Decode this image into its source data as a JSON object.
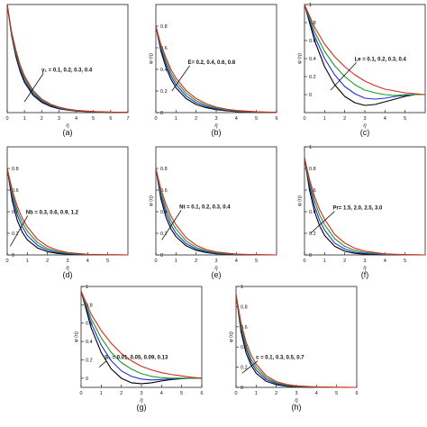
{
  "figure": {
    "background": "#ffffff",
    "series_colors": [
      "#000000",
      "#1f2fd6",
      "#1a9a2a",
      "#d62a1a"
    ]
  },
  "chart_data": [
    {
      "panel": "(a)",
      "type": "line",
      "xlabel": "η",
      "ylabel": "",
      "xlim": [
        0,
        7
      ],
      "ylim": [
        0,
        1
      ],
      "xticks": [
        0,
        1,
        2,
        3,
        4,
        5,
        6,
        7
      ],
      "yticks": [],
      "annotation": "γ₁ = 0.1, 0.2, 0.3, 0.4",
      "x": [
        0,
        0.25,
        0.5,
        0.75,
        1,
        1.5,
        2,
        2.5,
        3,
        3.5,
        4,
        5,
        6,
        7
      ],
      "series": [
        {
          "values": [
            1,
            0.72,
            0.52,
            0.38,
            0.28,
            0.16,
            0.095,
            0.058,
            0.036,
            0.023,
            0.015,
            0.007,
            0.003,
            0.001
          ]
        },
        {
          "values": [
            1,
            0.73,
            0.54,
            0.4,
            0.3,
            0.175,
            0.105,
            0.065,
            0.041,
            0.026,
            0.017,
            0.008,
            0.004,
            0.002
          ]
        },
        {
          "values": [
            1,
            0.74,
            0.56,
            0.42,
            0.32,
            0.19,
            0.115,
            0.072,
            0.046,
            0.029,
            0.019,
            0.009,
            0.004,
            0.002
          ]
        },
        {
          "values": [
            1,
            0.75,
            0.58,
            0.44,
            0.34,
            0.205,
            0.125,
            0.079,
            0.051,
            0.033,
            0.021,
            0.01,
            0.005,
            0.002
          ]
        }
      ]
    },
    {
      "panel": "(b)",
      "type": "line",
      "xlabel": "η",
      "ylabel": "φ (η)",
      "xlim": [
        0,
        6
      ],
      "ylim": [
        0,
        1
      ],
      "xticks": [
        0,
        1,
        2,
        3,
        4,
        5,
        6
      ],
      "yticks": [
        0,
        0.2,
        0.4,
        0.6,
        0.8
      ],
      "annotation": "E= 0.2, 0.4, 0.6, 0.8",
      "x": [
        0,
        0.25,
        0.5,
        0.75,
        1,
        1.5,
        2,
        2.5,
        3,
        3.5,
        4,
        5,
        6
      ],
      "series": [
        {
          "values": [
            0.8,
            0.57,
            0.42,
            0.31,
            0.23,
            0.13,
            0.075,
            0.045,
            0.027,
            0.017,
            0.01,
            0.004,
            0.002
          ]
        },
        {
          "values": [
            0.8,
            0.59,
            0.45,
            0.34,
            0.26,
            0.155,
            0.092,
            0.056,
            0.034,
            0.021,
            0.013,
            0.005,
            0.002
          ]
        },
        {
          "values": [
            0.8,
            0.61,
            0.48,
            0.37,
            0.29,
            0.18,
            0.11,
            0.068,
            0.042,
            0.026,
            0.016,
            0.006,
            0.002
          ]
        },
        {
          "values": [
            0.8,
            0.63,
            0.51,
            0.4,
            0.32,
            0.205,
            0.13,
            0.082,
            0.051,
            0.032,
            0.02,
            0.008,
            0.003
          ]
        }
      ]
    },
    {
      "panel": "(c)",
      "type": "line",
      "xlabel": "η",
      "ylabel": "φ (η)",
      "xlim": [
        0,
        6
      ],
      "ylim": [
        -0.2,
        1
      ],
      "xticks": [
        0,
        1,
        2,
        3,
        4,
        5
      ],
      "yticks": [
        0,
        0.2,
        0.4,
        0.6,
        0.8,
        1
      ],
      "annotation": "Le = 0.1, 0.2, 0.3, 0.4",
      "x": [
        0,
        0.5,
        1,
        1.5,
        2,
        2.5,
        3,
        3.5,
        4,
        4.5,
        5,
        5.5,
        6
      ],
      "series": [
        {
          "values": [
            1,
            0.6,
            0.31,
            0.11,
            -0.02,
            -0.09,
            -0.12,
            -0.11,
            -0.08,
            -0.05,
            -0.02,
            0,
            0
          ]
        },
        {
          "values": [
            1,
            0.65,
            0.4,
            0.22,
            0.09,
            0.01,
            -0.04,
            -0.05,
            -0.04,
            -0.02,
            -0.01,
            0,
            0
          ]
        },
        {
          "values": [
            1,
            0.7,
            0.48,
            0.32,
            0.2,
            0.11,
            0.05,
            0.02,
            0,
            -0.01,
            0,
            0,
            0
          ]
        },
        {
          "values": [
            1,
            0.75,
            0.56,
            0.42,
            0.31,
            0.22,
            0.15,
            0.1,
            0.06,
            0.04,
            0.02,
            0.01,
            0
          ]
        }
      ]
    },
    {
      "panel": "(d)",
      "type": "line",
      "xlabel": "η",
      "ylabel": "",
      "xlim": [
        0,
        6
      ],
      "ylim": [
        0,
        1
      ],
      "xticks": [
        0,
        1,
        2,
        3,
        4,
        5
      ],
      "yticks": [
        0,
        0.2,
        0.4,
        0.6,
        0.8
      ],
      "annotation": "Nb = 0.3, 0.6, 0.9, 1.2",
      "x": [
        0,
        0.25,
        0.5,
        0.75,
        1,
        1.5,
        2,
        2.5,
        3,
        4,
        5,
        6
      ],
      "series": [
        {
          "values": [
            0.8,
            0.5,
            0.32,
            0.21,
            0.14,
            0.065,
            0.03,
            0.014,
            0.007,
            0.002,
            0,
            0
          ]
        },
        {
          "values": [
            0.8,
            0.54,
            0.37,
            0.26,
            0.18,
            0.09,
            0.045,
            0.022,
            0.011,
            0.003,
            0.001,
            0
          ]
        },
        {
          "values": [
            0.8,
            0.57,
            0.41,
            0.3,
            0.22,
            0.115,
            0.06,
            0.031,
            0.016,
            0.004,
            0.001,
            0
          ]
        },
        {
          "values": [
            0.8,
            0.6,
            0.45,
            0.34,
            0.26,
            0.145,
            0.08,
            0.043,
            0.023,
            0.006,
            0.002,
            0
          ]
        }
      ]
    },
    {
      "panel": "(e)",
      "type": "line",
      "xlabel": "η",
      "ylabel": "φ (η)",
      "xlim": [
        0,
        6
      ],
      "ylim": [
        0,
        1
      ],
      "xticks": [
        0,
        1,
        2,
        3,
        4,
        5
      ],
      "yticks": [
        0,
        0.2,
        0.4,
        0.6,
        0.8
      ],
      "annotation": "Nt = 0.1, 0.2, 0.3, 0.4",
      "x": [
        0,
        0.25,
        0.5,
        0.75,
        1,
        1.5,
        2,
        2.5,
        3,
        4,
        5,
        6
      ],
      "series": [
        {
          "values": [
            0.8,
            0.52,
            0.35,
            0.24,
            0.17,
            0.085,
            0.043,
            0.022,
            0.011,
            0.003,
            0.001,
            0
          ]
        },
        {
          "values": [
            0.8,
            0.55,
            0.39,
            0.28,
            0.2,
            0.105,
            0.055,
            0.029,
            0.015,
            0.004,
            0.001,
            0
          ]
        },
        {
          "values": [
            0.8,
            0.58,
            0.43,
            0.32,
            0.24,
            0.13,
            0.07,
            0.038,
            0.02,
            0.006,
            0.002,
            0
          ]
        },
        {
          "values": [
            0.8,
            0.61,
            0.47,
            0.36,
            0.28,
            0.16,
            0.09,
            0.05,
            0.028,
            0.008,
            0.002,
            0
          ]
        }
      ]
    },
    {
      "panel": "(f)",
      "type": "line",
      "xlabel": "η",
      "ylabel": "φ (η)",
      "xlim": [
        0,
        6
      ],
      "ylim": [
        0,
        1
      ],
      "xticks": [
        0,
        1,
        2,
        3,
        4,
        5
      ],
      "yticks": [
        0,
        0.2,
        0.4,
        0.6,
        0.8,
        1
      ],
      "annotation": "Pr= 1.5, 2.0, 2.5, 3.0",
      "x": [
        0,
        0.25,
        0.5,
        0.75,
        1,
        1.5,
        2,
        2.5,
        3,
        4,
        5,
        6
      ],
      "series": [
        {
          "values": [
            0.9,
            0.6,
            0.4,
            0.27,
            0.18,
            0.08,
            0.035,
            0.015,
            0.007,
            0.001,
            0,
            0
          ]
        },
        {
          "values": [
            0.9,
            0.64,
            0.45,
            0.32,
            0.23,
            0.11,
            0.055,
            0.026,
            0.013,
            0.003,
            0.001,
            0
          ]
        },
        {
          "values": [
            0.9,
            0.67,
            0.5,
            0.37,
            0.28,
            0.15,
            0.08,
            0.042,
            0.022,
            0.006,
            0.002,
            0
          ]
        },
        {
          "values": [
            0.9,
            0.7,
            0.54,
            0.42,
            0.33,
            0.19,
            0.11,
            0.062,
            0.035,
            0.01,
            0.003,
            0
          ]
        }
      ]
    },
    {
      "panel": "(g)",
      "type": "line",
      "xlabel": "η",
      "ylabel": "φ (η)",
      "xlim": [
        0,
        6
      ],
      "ylim": [
        -0.1,
        1
      ],
      "xticks": [
        0,
        1,
        2,
        3,
        4,
        5,
        6
      ],
      "yticks": [
        0,
        0.2,
        0.4,
        0.6,
        0.8,
        1
      ],
      "annotation": "S₂ = 0.01, 0.05, 0.09, 0.13",
      "x": [
        0,
        0.5,
        1,
        1.5,
        2,
        2.5,
        3,
        3.5,
        4,
        4.5,
        5,
        5.5,
        6
      ],
      "series": [
        {
          "values": [
            0.95,
            0.55,
            0.28,
            0.1,
            0,
            -0.05,
            -0.06,
            -0.05,
            -0.03,
            -0.015,
            -0.005,
            0,
            0
          ]
        },
        {
          "values": [
            0.95,
            0.6,
            0.36,
            0.19,
            0.08,
            0.02,
            -0.01,
            -0.02,
            -0.015,
            -0.008,
            -0.002,
            0,
            0
          ]
        },
        {
          "values": [
            0.95,
            0.65,
            0.44,
            0.28,
            0.17,
            0.1,
            0.05,
            0.02,
            0.005,
            0,
            0,
            0,
            0
          ]
        },
        {
          "values": [
            0.95,
            0.7,
            0.52,
            0.38,
            0.27,
            0.19,
            0.13,
            0.09,
            0.06,
            0.04,
            0.025,
            0.01,
            0
          ]
        }
      ]
    },
    {
      "panel": "(h)",
      "type": "line",
      "xlabel": "η",
      "ylabel": "φ (η)",
      "xlim": [
        0,
        6
      ],
      "ylim": [
        0,
        1
      ],
      "xticks": [
        0,
        1,
        2,
        3,
        4,
        5,
        6
      ],
      "yticks": [
        0,
        0.2,
        0.4,
        0.6,
        0.8,
        1
      ],
      "annotation": "c = 0.1, 0.3, 0.5, 0.7",
      "x": [
        0,
        0.25,
        0.5,
        0.75,
        1,
        1.5,
        2,
        2.5,
        3,
        4,
        5,
        6
      ],
      "series": [
        {
          "values": [
            0.92,
            0.55,
            0.34,
            0.22,
            0.14,
            0.06,
            0.027,
            0.012,
            0.005,
            0.001,
            0,
            0
          ]
        },
        {
          "values": [
            0.92,
            0.58,
            0.38,
            0.25,
            0.17,
            0.078,
            0.037,
            0.017,
            0.008,
            0.002,
            0,
            0
          ]
        },
        {
          "values": [
            0.92,
            0.61,
            0.41,
            0.28,
            0.2,
            0.095,
            0.047,
            0.023,
            0.011,
            0.003,
            0.001,
            0
          ]
        },
        {
          "values": [
            0.92,
            0.64,
            0.45,
            0.32,
            0.23,
            0.115,
            0.058,
            0.03,
            0.015,
            0.004,
            0.001,
            0
          ]
        }
      ]
    }
  ]
}
